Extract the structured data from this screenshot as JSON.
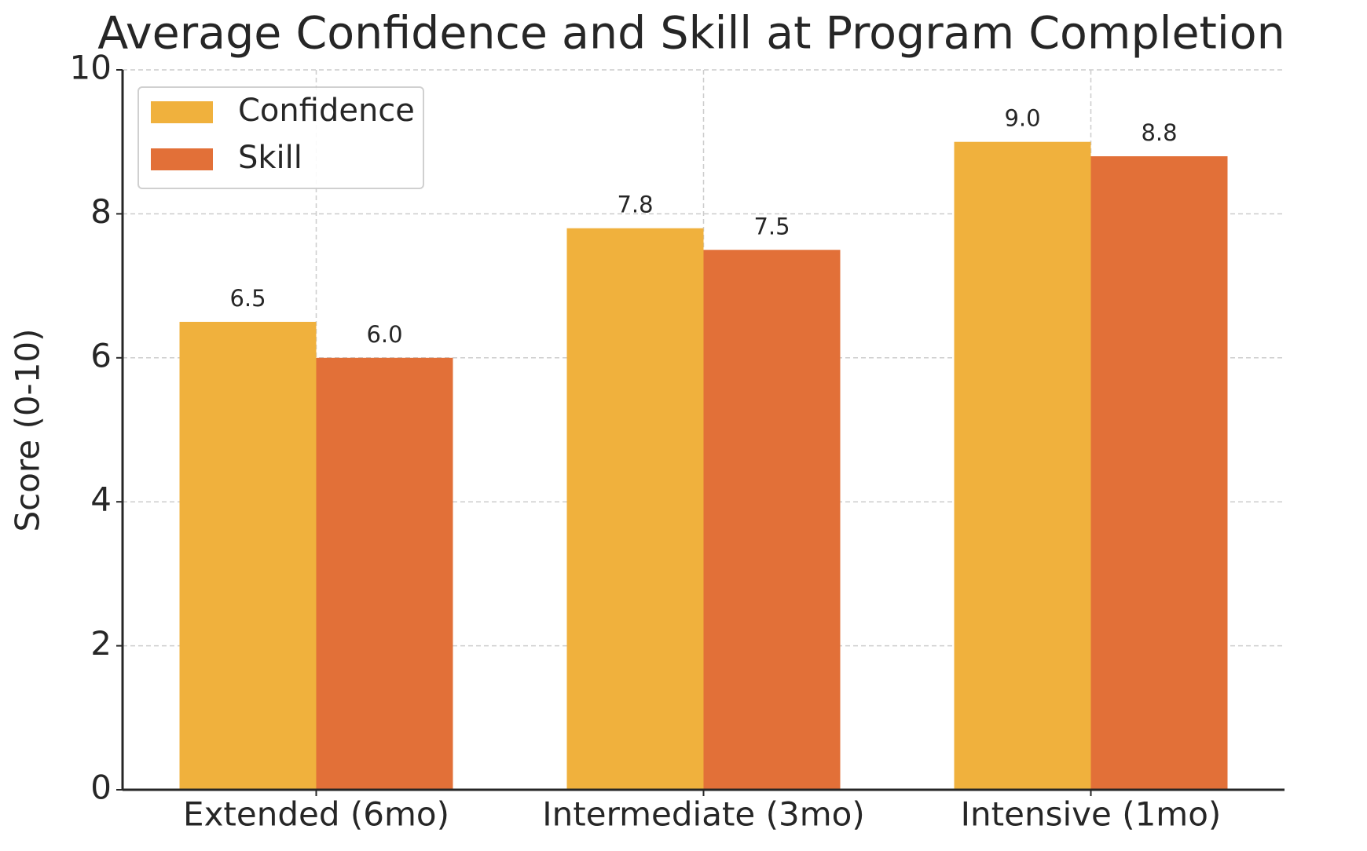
{
  "chart_data": {
    "type": "bar",
    "title": "Average Confidence and Skill at Program Completion",
    "ylabel": "Score (0-10)",
    "categories": [
      "Extended (6mo)",
      "Intermediate (3mo)",
      "Intensive (1mo)"
    ],
    "series": [
      {
        "name": "Confidence",
        "color": "#f0b13d",
        "values": [
          6.5,
          7.8,
          9.0
        ],
        "value_labels": [
          "6.5",
          "7.8",
          "9.0"
        ]
      },
      {
        "name": "Skill",
        "color": "#e27038",
        "values": [
          6.0,
          7.5,
          8.8
        ],
        "value_labels": [
          "6.0",
          "7.5",
          "8.8"
        ]
      }
    ],
    "ylim": [
      0,
      10
    ],
    "yticks": [
      0,
      2,
      4,
      6,
      8,
      10
    ],
    "grid": true,
    "legend": "upper left"
  }
}
